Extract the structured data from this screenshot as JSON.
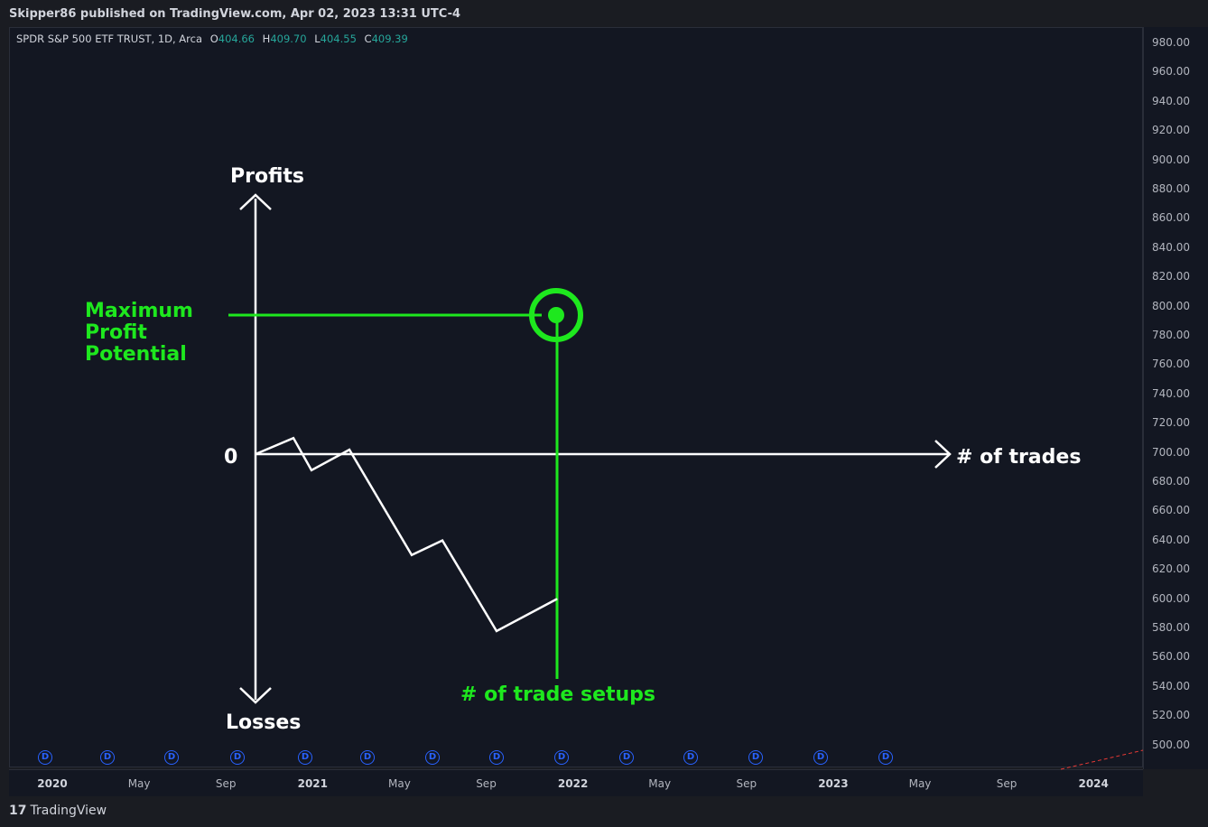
{
  "header": {
    "published": "Skipper86 published on TradingView.com, Apr 02, 2023 13:31 UTC-4"
  },
  "legend": {
    "symbol": "SPDR S&P 500 ETF TRUST, 1D, Arca",
    "o_label": "O",
    "o_value": "404.66",
    "h_label": "H",
    "h_value": "409.70",
    "l_label": "L",
    "l_value": "404.55",
    "c_label": "C",
    "c_value": "409.39"
  },
  "price_ticks": [
    "980.00",
    "960.00",
    "940.00",
    "920.00",
    "900.00",
    "880.00",
    "860.00",
    "840.00",
    "820.00",
    "800.00",
    "780.00",
    "760.00",
    "740.00",
    "720.00",
    "700.00",
    "680.00",
    "660.00",
    "640.00",
    "620.00",
    "600.00",
    "580.00",
    "560.00",
    "540.00",
    "520.00",
    "500.00"
  ],
  "time_ticks": [
    {
      "label": "2020",
      "year": true
    },
    {
      "label": "May",
      "year": false
    },
    {
      "label": "Sep",
      "year": false
    },
    {
      "label": "2021",
      "year": true
    },
    {
      "label": "May",
      "year": false
    },
    {
      "label": "Sep",
      "year": false
    },
    {
      "label": "2022",
      "year": true
    },
    {
      "label": "May",
      "year": false
    },
    {
      "label": "Sep",
      "year": false
    },
    {
      "label": "2023",
      "year": true
    },
    {
      "label": "May",
      "year": false
    },
    {
      "label": "Sep",
      "year": false
    },
    {
      "label": "2024",
      "year": true
    }
  ],
  "dividend_marker": "D",
  "dividend_count": 14,
  "annotations": {
    "profits": "Profits",
    "losses": "Losses",
    "zero": "0",
    "trades": "# of trades",
    "max_line1": "Maximum",
    "max_line2": "Profit",
    "max_line3": "Potential",
    "setups": "# of trade setups"
  },
  "colors": {
    "annotation_green": "#1ee81e",
    "annotation_white": "#ffffff",
    "background": "#131722",
    "price_up": "#26a69a",
    "dividend": "#2962ff"
  },
  "footer": {
    "brand": "TradingView",
    "logo": "17"
  },
  "chart_data": {
    "type": "line",
    "title": "",
    "xlabel": "# of trades",
    "ylabel": "Profits / Losses",
    "note": "hand-drawn equity curve over a SPY daily chart; y expressed in price-axis units",
    "x": [
      0,
      1,
      2,
      3,
      4,
      5,
      6,
      7
    ],
    "y": [
      700,
      711,
      689,
      703,
      631,
      641,
      579,
      601
    ],
    "zero_level": 700,
    "max_profit_level": 795,
    "ylim": [
      490,
      990
    ]
  }
}
